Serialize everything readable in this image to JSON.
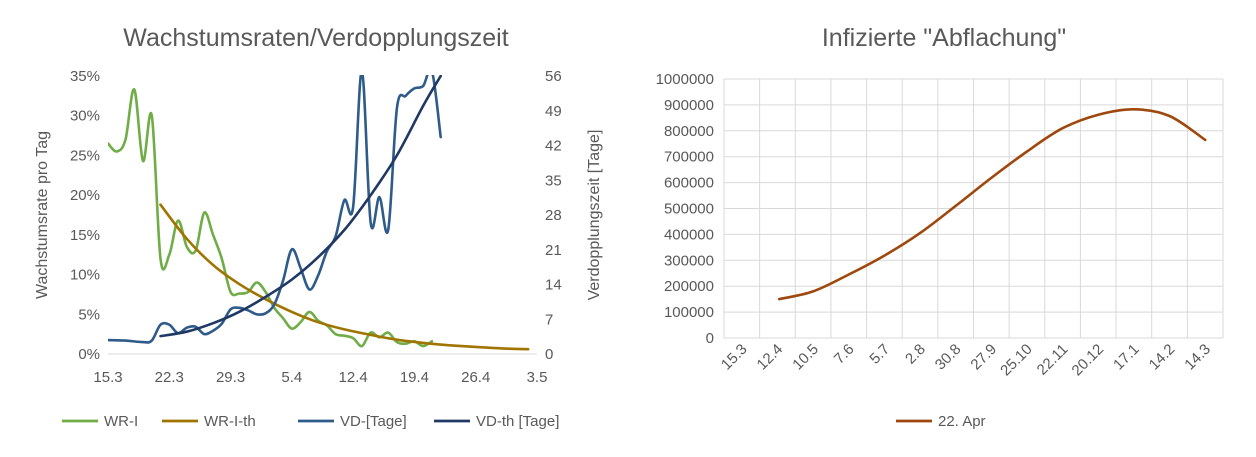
{
  "chart_data": [
    {
      "type": "line",
      "title": "Wachstumsraten/Verdopplungszeit",
      "ylabel": "Wachstumsrate pro Tag",
      "y2label": "Verdopplungszeit [Tage]",
      "xlabel": "",
      "x_ticks": [
        "15.3",
        "22.3",
        "29.3",
        "5.4",
        "12.4",
        "19.4",
        "26.4",
        "3.5"
      ],
      "y_ticks": [
        "0%",
        "5%",
        "10%",
        "15%",
        "20%",
        "25%",
        "30%",
        "35%"
      ],
      "y2_ticks": [
        "0",
        "7",
        "14",
        "21",
        "28",
        "35",
        "42",
        "49",
        "56"
      ],
      "ylim": [
        0,
        35
      ],
      "y2lim": [
        0,
        56
      ],
      "xlim": [
        "15.3",
        "3.5"
      ],
      "grid": false,
      "legend_position": "bottom",
      "series": [
        {
          "name": "WR-I",
          "axis": "left",
          "color": "#70AD47",
          "x": [
            "15.3",
            "16.3",
            "17.3",
            "18.3",
            "19.3",
            "20.3",
            "21.3",
            "22.3",
            "23.3",
            "24.3",
            "25.3",
            "26.3",
            "27.3",
            "28.3",
            "29.3",
            "30.3",
            "31.3",
            "1.4",
            "2.4",
            "3.4",
            "4.4",
            "5.4",
            "6.4",
            "7.4",
            "8.4",
            "9.4",
            "10.4",
            "11.4",
            "12.4",
            "13.4",
            "14.4",
            "15.4",
            "16.4",
            "17.4",
            "18.4",
            "19.4",
            "20.4",
            "21.4",
            "22.4"
          ],
          "values": [
            26.5,
            25.5,
            27,
            33.3,
            24.3,
            30,
            12,
            12.5,
            16.8,
            13.5,
            13,
            17.8,
            15,
            12,
            7.8,
            7.6,
            7.8,
            9,
            7.8,
            5.8,
            4.5,
            3.2,
            4,
            5.3,
            4.2,
            3.6,
            2.5,
            2.3,
            2,
            1,
            2.7,
            2.1,
            2.7,
            1.5,
            1.3,
            1.6,
            1,
            1.6,
            null
          ]
        },
        {
          "name": "WR-I-th",
          "axis": "left",
          "color": "#A07400",
          "x": [
            "21.3",
            "24.3",
            "27.3",
            "30.3",
            "2.4",
            "5.4",
            "8.4",
            "11.4",
            "14.4",
            "17.4",
            "20.4",
            "23.4",
            "26.4",
            "29.4",
            "2.5"
          ],
          "values": [
            18.8,
            14.5,
            11.2,
            8.8,
            6.9,
            5.3,
            4,
            3.1,
            2.4,
            1.8,
            1.4,
            1.1,
            0.9,
            0.7,
            0.6
          ]
        },
        {
          "name": "VD-[Tage]",
          "axis": "right",
          "color": "#2E5B8A",
          "x": [
            "15.3",
            "17.3",
            "19.3",
            "20.3",
            "21.3",
            "22.3",
            "23.3",
            "24.3",
            "25.3",
            "26.3",
            "27.3",
            "28.3",
            "29.3",
            "30.3",
            "31.3",
            "1.4",
            "2.4",
            "3.4",
            "4.4",
            "5.4",
            "6.4",
            "7.4",
            "8.4",
            "9.4",
            "10.4",
            "11.4",
            "12.4",
            "13.4",
            "14.4",
            "15.4",
            "16.4",
            "17.4",
            "18.4",
            "19.4",
            "20.4",
            "21.4",
            "22.4"
          ],
          "values": [
            2.8,
            2.7,
            2.4,
            2.7,
            5.9,
            5.9,
            4.2,
            5.3,
            5.5,
            4,
            4.7,
            6.1,
            9,
            9.3,
            8.8,
            8,
            8.2,
            10,
            14.8,
            21.1,
            17.3,
            13,
            15.8,
            20.7,
            23.7,
            31,
            29.6,
            57,
            26.4,
            31.6,
            25,
            49.5,
            52,
            53.5,
            54,
            57,
            43.7
          ]
        },
        {
          "name": "VD-th [Tage]",
          "axis": "right",
          "color": "#203864",
          "x": [
            "21.3",
            "24.3",
            "27.3",
            "30.3",
            "2.4",
            "5.4",
            "8.4",
            "11.4",
            "14.4",
            "17.4",
            "20.4",
            "22.4"
          ],
          "values": [
            3.6,
            4.5,
            6.2,
            8.5,
            11.5,
            15,
            19.5,
            25,
            32,
            40,
            50,
            56
          ]
        }
      ]
    },
    {
      "type": "line",
      "title": "Infizierte \"Abflachung\"",
      "xlabel": "",
      "ylabel": "",
      "x_ticks": [
        "15.3",
        "12.4",
        "10.5",
        "7.6",
        "5.7",
        "2.8",
        "30.8",
        "27.9",
        "25.10",
        "22.11",
        "20.12",
        "17.1",
        "14.2",
        "14.3"
      ],
      "y_ticks": [
        "0",
        "100000",
        "200000",
        "300000",
        "400000",
        "500000",
        "600000",
        "700000",
        "800000",
        "900000",
        "1000000"
      ],
      "ylim": [
        0,
        1000000
      ],
      "grid": true,
      "legend_position": "bottom",
      "series": [
        {
          "name": "22. Apr",
          "color": "#9E480E",
          "x": [
            "22.4",
            "10.5",
            "7.6",
            "5.7",
            "2.8",
            "30.8",
            "27.9",
            "25.10",
            "22.11",
            "20.12",
            "17.1",
            "14.2",
            "21.3"
          ],
          "values": [
            150000,
            180000,
            245000,
            318000,
            405000,
            510000,
            618000,
            720000,
            810000,
            862000,
            883000,
            857000,
            765000
          ]
        }
      ]
    }
  ]
}
